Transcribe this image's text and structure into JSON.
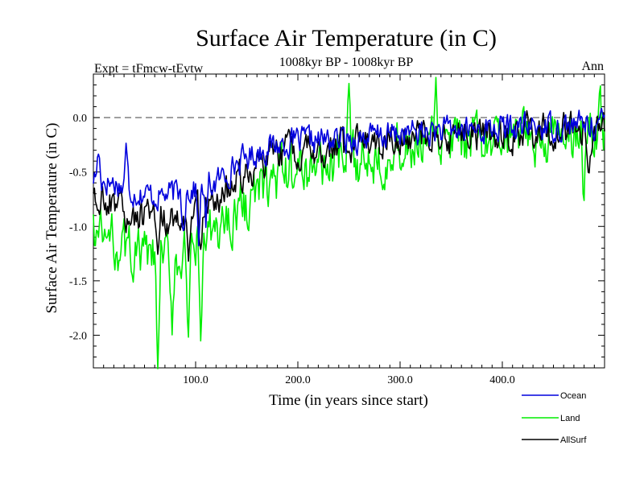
{
  "chart_data": {
    "type": "line",
    "title": "Surface Air Temperature (in C)",
    "subtitle_left": "Expt = tFmcw-tEvtw",
    "subtitle_center": "1008kyr BP - 1008kyr BP",
    "subtitle_right": "Ann",
    "xlabel": "Time (in years since start)",
    "ylabel": "Surface Air Temperature (in C)",
    "xlim": [
      0,
      500
    ],
    "ylim": [
      -2.3,
      0.4
    ],
    "x_major_ticks": [
      100,
      200,
      300,
      400
    ],
    "x_tick_labels": [
      "100.0",
      "200.0",
      "300.0",
      "400.0"
    ],
    "y_major_ticks": [
      -2.0,
      -1.5,
      -1.0,
      -0.5,
      0.0
    ],
    "y_tick_labels": [
      "-2.0",
      "-1.5",
      "-1.0",
      "-0.5",
      "0.0"
    ],
    "reference_line": 0.0,
    "series": [
      {
        "name": "Ocean",
        "color": "#0000dd",
        "knots": [
          [
            0,
            -0.55
          ],
          [
            20,
            -0.6
          ],
          [
            40,
            -0.68
          ],
          [
            60,
            -0.72
          ],
          [
            80,
            -0.7
          ],
          [
            100,
            -0.66
          ],
          [
            120,
            -0.6
          ],
          [
            140,
            -0.42
          ],
          [
            160,
            -0.32
          ],
          [
            180,
            -0.25
          ],
          [
            200,
            -0.22
          ],
          [
            250,
            -0.2
          ],
          [
            300,
            -0.15
          ],
          [
            350,
            -0.12
          ],
          [
            400,
            -0.1
          ],
          [
            450,
            -0.08
          ],
          [
            500,
            -0.05
          ]
        ],
        "noise": 0.11,
        "events": [
          [
            5,
            0.25
          ],
          [
            32,
            0.35
          ],
          [
            88,
            -0.3
          ],
          [
            103,
            -0.45
          ],
          [
            110,
            -0.35
          ]
        ]
      },
      {
        "name": "Land",
        "color": "#00ee00",
        "knots": [
          [
            0,
            -1.05
          ],
          [
            20,
            -1.15
          ],
          [
            40,
            -1.25
          ],
          [
            60,
            -1.32
          ],
          [
            80,
            -1.3
          ],
          [
            100,
            -1.22
          ],
          [
            120,
            -1.05
          ],
          [
            140,
            -0.85
          ],
          [
            160,
            -0.7
          ],
          [
            180,
            -0.55
          ],
          [
            200,
            -0.48
          ],
          [
            250,
            -0.4
          ],
          [
            300,
            -0.3
          ],
          [
            350,
            -0.25
          ],
          [
            400,
            -0.22
          ],
          [
            450,
            -0.2
          ],
          [
            500,
            -0.15
          ]
        ],
        "noise": 0.21,
        "events": [
          [
            63,
            -0.95
          ],
          [
            93,
            -1.0
          ],
          [
            105,
            -0.85
          ],
          [
            77,
            -0.5
          ],
          [
            250,
            0.45
          ],
          [
            335,
            0.4
          ],
          [
            495,
            0.5
          ],
          [
            480,
            -0.6
          ]
        ]
      },
      {
        "name": "AllSurf",
        "color": "#000000",
        "knots": [
          [
            0,
            -0.72
          ],
          [
            20,
            -0.8
          ],
          [
            40,
            -0.9
          ],
          [
            60,
            -0.95
          ],
          [
            80,
            -0.92
          ],
          [
            100,
            -0.88
          ],
          [
            120,
            -0.78
          ],
          [
            140,
            -0.58
          ],
          [
            160,
            -0.45
          ],
          [
            180,
            -0.35
          ],
          [
            200,
            -0.3
          ],
          [
            250,
            -0.26
          ],
          [
            300,
            -0.2
          ],
          [
            350,
            -0.17
          ],
          [
            400,
            -0.15
          ],
          [
            450,
            -0.12
          ],
          [
            500,
            -0.1
          ]
        ],
        "noise": 0.14,
        "events": [
          [
            63,
            -0.4
          ],
          [
            93,
            -0.55
          ],
          [
            105,
            -0.5
          ],
          [
            485,
            -0.45
          ]
        ]
      }
    ]
  }
}
